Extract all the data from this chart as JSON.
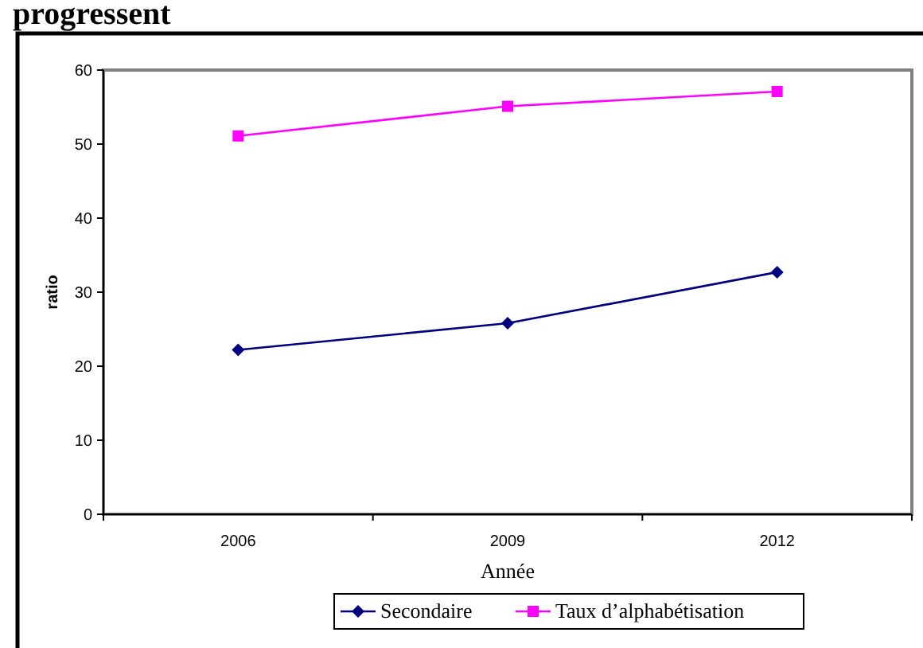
{
  "chart_data": {
    "type": "line",
    "title": "progressent",
    "xlabel": "Année",
    "ylabel": "ratio",
    "categories": [
      "2006",
      "2009",
      "2012"
    ],
    "series": [
      {
        "name": "Secondaire",
        "color": "#000080",
        "values": [
          22.2,
          25.8,
          32.7
        ],
        "marker": "diamond"
      },
      {
        "name": "Taux d’alphabétisation",
        "color": "#ff00ff",
        "values": [
          51.1,
          55.1,
          57.1
        ],
        "marker": "square"
      }
    ],
    "ylim": [
      0,
      60
    ],
    "yticks": [
      0,
      10,
      20,
      30,
      40,
      50,
      60
    ],
    "grid": false,
    "legend": "bottom"
  }
}
